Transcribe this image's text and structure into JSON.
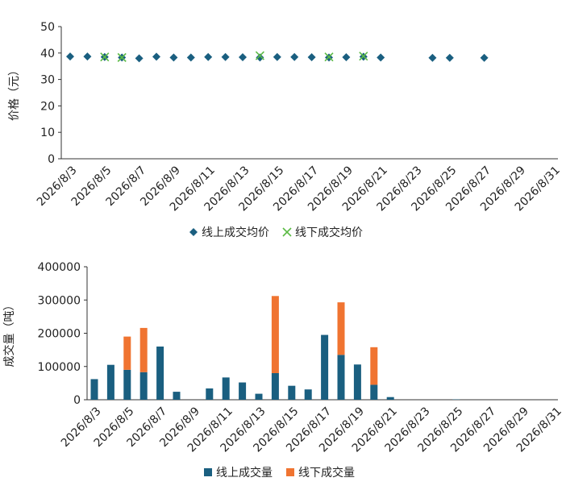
{
  "chart_data": [
    {
      "type": "scatter",
      "ylabel": "价格（元）",
      "categories": [
        "2026/8/3",
        null,
        "2026/8/5",
        null,
        "2026/8/7",
        null,
        "2026/8/9",
        null,
        "2026/8/11",
        null,
        "2026/8/13",
        null,
        "2026/8/15",
        null,
        "2026/8/17",
        null,
        "2026/8/19",
        null,
        "2026/8/21",
        null,
        "2026/8/23",
        null,
        "2026/8/25",
        null,
        "2026/8/27",
        null,
        "2026/8/29",
        null,
        "2026/8/31"
      ],
      "series": [
        {
          "name": "线上成交均价",
          "color": "#1a5f80",
          "marker": "diamond",
          "values": [
            38.7,
            38.7,
            38.5,
            38.3,
            38.0,
            38.6,
            38.3,
            38.3,
            38.5,
            38.5,
            38.4,
            38.3,
            38.5,
            38.5,
            38.4,
            38.3,
            38.4,
            38.6,
            38.3,
            null,
            null,
            38.2,
            38.2,
            null,
            38.2,
            null,
            null,
            null,
            null
          ]
        },
        {
          "name": "线下成交均价",
          "color": "#5dbb46",
          "marker": "x",
          "values": [
            null,
            null,
            38.5,
            38.3,
            null,
            null,
            null,
            null,
            null,
            null,
            null,
            39.0,
            null,
            null,
            null,
            38.5,
            null,
            38.8,
            null,
            null,
            null,
            null,
            null,
            null,
            null,
            null,
            null,
            null,
            null
          ]
        }
      ],
      "ylim": [
        0,
        50
      ],
      "yticks": [
        0,
        10,
        20,
        30,
        40,
        50
      ],
      "legend": "bottom"
    },
    {
      "type": "bar",
      "ylabel": "成交量（吨）",
      "categories": [
        "2026/8/3",
        null,
        "2026/8/5",
        null,
        "2026/8/7",
        null,
        "2026/8/9",
        null,
        "2026/8/11",
        null,
        "2026/8/13",
        null,
        "2026/8/15",
        null,
        "2026/8/17",
        null,
        "2026/8/19",
        null,
        "2026/8/21",
        null,
        "2026/8/23",
        null,
        "2026/8/25",
        null,
        "2026/8/27",
        null,
        "2026/8/29",
        null,
        "2026/8/31"
      ],
      "series": [
        {
          "name": "线上成交量",
          "color": "#1a5f80",
          "values": [
            62000,
            105000,
            90000,
            83000,
            160000,
            24000,
            null,
            34000,
            67000,
            52000,
            18000,
            80000,
            42000,
            31000,
            195000,
            135000,
            106000,
            45000,
            8000,
            null,
            null,
            null,
            1000,
            null,
            null,
            null,
            null,
            null,
            null
          ]
        },
        {
          "name": "线下成交量",
          "color": "#f07431",
          "values": [
            null,
            null,
            100000,
            133000,
            null,
            null,
            null,
            null,
            null,
            null,
            null,
            232000,
            null,
            null,
            null,
            158000,
            null,
            113000,
            null,
            null,
            null,
            null,
            null,
            null,
            null,
            null,
            null,
            null,
            null
          ]
        }
      ],
      "ylim": [
        0,
        400000
      ],
      "yticks": [
        0,
        100000,
        200000,
        300000,
        400000
      ],
      "stacked": true,
      "legend": "bottom"
    }
  ]
}
